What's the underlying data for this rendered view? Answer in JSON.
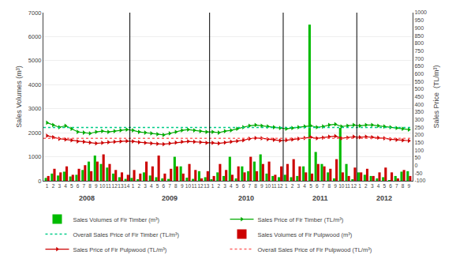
{
  "chart_data": {
    "type": "bar",
    "categories": [
      [
        "2008",
        "1"
      ],
      [
        "2008",
        "2"
      ],
      [
        "2008",
        "3"
      ],
      [
        "2008",
        "4"
      ],
      [
        "2008",
        "5"
      ],
      [
        "2008",
        "6"
      ],
      [
        "2008",
        "7"
      ],
      [
        "2008",
        "8"
      ],
      [
        "2008",
        "9"
      ],
      [
        "2008",
        "10"
      ],
      [
        "2008",
        "11"
      ],
      [
        "2008",
        "12"
      ],
      [
        "2008",
        "13"
      ],
      [
        "2008",
        "14"
      ],
      [
        "2009",
        "1"
      ],
      [
        "2009",
        "2"
      ],
      [
        "2009",
        "3"
      ],
      [
        "2009",
        "4"
      ],
      [
        "2009",
        "5"
      ],
      [
        "2009",
        "6"
      ],
      [
        "2009",
        "7"
      ],
      [
        "2009",
        "8"
      ],
      [
        "2009",
        "9"
      ],
      [
        "2009",
        "10"
      ],
      [
        "2009",
        "11"
      ],
      [
        "2009",
        "12"
      ],
      [
        "2009",
        "13"
      ],
      [
        "2010",
        "1"
      ],
      [
        "2010",
        "2"
      ],
      [
        "2010",
        "3"
      ],
      [
        "2010",
        "4"
      ],
      [
        "2010",
        "5"
      ],
      [
        "2010",
        "6"
      ],
      [
        "2010",
        "7"
      ],
      [
        "2010",
        "8"
      ],
      [
        "2010",
        "9"
      ],
      [
        "2010",
        "10"
      ],
      [
        "2010",
        "11"
      ],
      [
        "2010",
        "12"
      ],
      [
        "2011",
        "1"
      ],
      [
        "2011",
        "2"
      ],
      [
        "2011",
        "3"
      ],
      [
        "2011",
        "4"
      ],
      [
        "2011",
        "5"
      ],
      [
        "2011",
        "6"
      ],
      [
        "2011",
        "7"
      ],
      [
        "2011",
        "8"
      ],
      [
        "2011",
        "9"
      ],
      [
        "2011",
        "10"
      ],
      [
        "2011",
        "11"
      ],
      [
        "2011",
        "12"
      ],
      [
        "2012",
        "1"
      ],
      [
        "2012",
        "2"
      ],
      [
        "2012",
        "3"
      ],
      [
        "2012",
        "4"
      ],
      [
        "2012",
        "5"
      ],
      [
        "2012",
        "6"
      ],
      [
        "2012",
        "7"
      ],
      [
        "2012",
        "8"
      ],
      [
        "2012",
        "9"
      ]
    ],
    "ylabel": "Sales Volumes (m³)",
    "y2label": "Sales Price  (TL/m³)",
    "ylim": [
      0,
      7000
    ],
    "yticks": [
      0,
      1000,
      2000,
      3000,
      4000,
      5000,
      6000,
      7000
    ],
    "y2lim": [
      -100,
      1000
    ],
    "y2ticks": [
      -100,
      -50,
      0,
      50,
      100,
      150,
      200,
      250,
      300,
      350,
      400,
      450,
      500,
      550,
      600,
      650,
      700,
      750,
      800,
      850,
      900,
      950,
      1000
    ],
    "grid": true,
    "legend": "bottom",
    "series": [
      {
        "name": "Sales Volumes of Fir Timber (m³)",
        "type": "bar",
        "color": "#00bb00",
        "values": [
          120,
          300,
          220,
          380,
          180,
          250,
          450,
          800,
          1050,
          700,
          550,
          300,
          150,
          80,
          120,
          50,
          350,
          220,
          150,
          100,
          80,
          1000,
          600,
          130,
          80,
          400,
          150,
          50,
          350,
          200,
          1000,
          100,
          600,
          400,
          800,
          1100,
          300,
          200,
          150,
          250,
          150,
          200,
          600,
          6500,
          1200,
          700,
          350,
          100,
          2200,
          700,
          50,
          350,
          250,
          200,
          100,
          150,
          30,
          200,
          380,
          400
        ]
      },
      {
        "name": "Sales Price of Fir Timber (TL/m³)",
        "type": "line",
        "axis": "y2",
        "color": "#00aa00",
        "marker": "triangle-right",
        "line_style": "solid",
        "values": [
          280,
          265,
          250,
          260,
          240,
          220,
          215,
          210,
          220,
          225,
          220,
          225,
          230,
          235,
          230,
          220,
          215,
          210,
          205,
          200,
          210,
          220,
          230,
          235,
          230,
          225,
          220,
          220,
          215,
          225,
          230,
          240,
          250,
          260,
          265,
          260,
          255,
          250,
          245,
          240,
          245,
          250,
          255,
          260,
          250,
          255,
          265,
          270,
          255,
          260,
          265,
          260,
          265,
          265,
          260,
          255,
          250,
          245,
          240,
          235
        ]
      },
      {
        "name": "Overall Sales Price of Fir Timber (TL/m³)",
        "type": "hline",
        "axis": "y2",
        "color": "#00cc88",
        "line_style": "dotted",
        "value": 248
      },
      {
        "name": "Sales Volumes of Fir Pulpwood (m³)",
        "type": "bar",
        "color": "#cc0000",
        "values": [
          200,
          500,
          350,
          600,
          250,
          500,
          650,
          400,
          800,
          1100,
          700,
          450,
          350,
          250,
          450,
          300,
          800,
          600,
          1050,
          300,
          500,
          600,
          300,
          700,
          450,
          100,
          400,
          200,
          700,
          450,
          250,
          600,
          350,
          1000,
          400,
          700,
          800,
          250,
          600,
          700,
          900,
          600,
          350,
          300,
          700,
          600,
          500,
          900,
          350,
          200,
          550,
          350,
          500,
          200,
          350,
          550,
          350,
          100,
          450,
          200
        ]
      },
      {
        "name": "Sales Price of Fir Pulpwood (TL/m³)",
        "type": "line",
        "axis": "y2",
        "color": "#cc0000",
        "marker": "triangle-right",
        "line_style": "solid",
        "values": [
          195,
          185,
          175,
          170,
          165,
          158,
          155,
          150,
          145,
          148,
          152,
          155,
          158,
          160,
          158,
          152,
          148,
          145,
          142,
          140,
          145,
          150,
          155,
          158,
          155,
          152,
          148,
          148,
          145,
          150,
          155,
          160,
          165,
          175,
          180,
          178,
          172,
          168,
          163,
          165,
          170,
          175,
          180,
          185,
          178,
          182,
          188,
          192,
          178,
          182,
          188,
          185,
          188,
          185,
          182,
          178,
          172,
          168,
          165,
          162
        ]
      },
      {
        "name": "Overall Sales Price of Fir Pulpwood (TL/m³)",
        "type": "hline",
        "axis": "y2",
        "color": "#ff6666",
        "line_style": "dotted",
        "value": 178
      }
    ]
  }
}
